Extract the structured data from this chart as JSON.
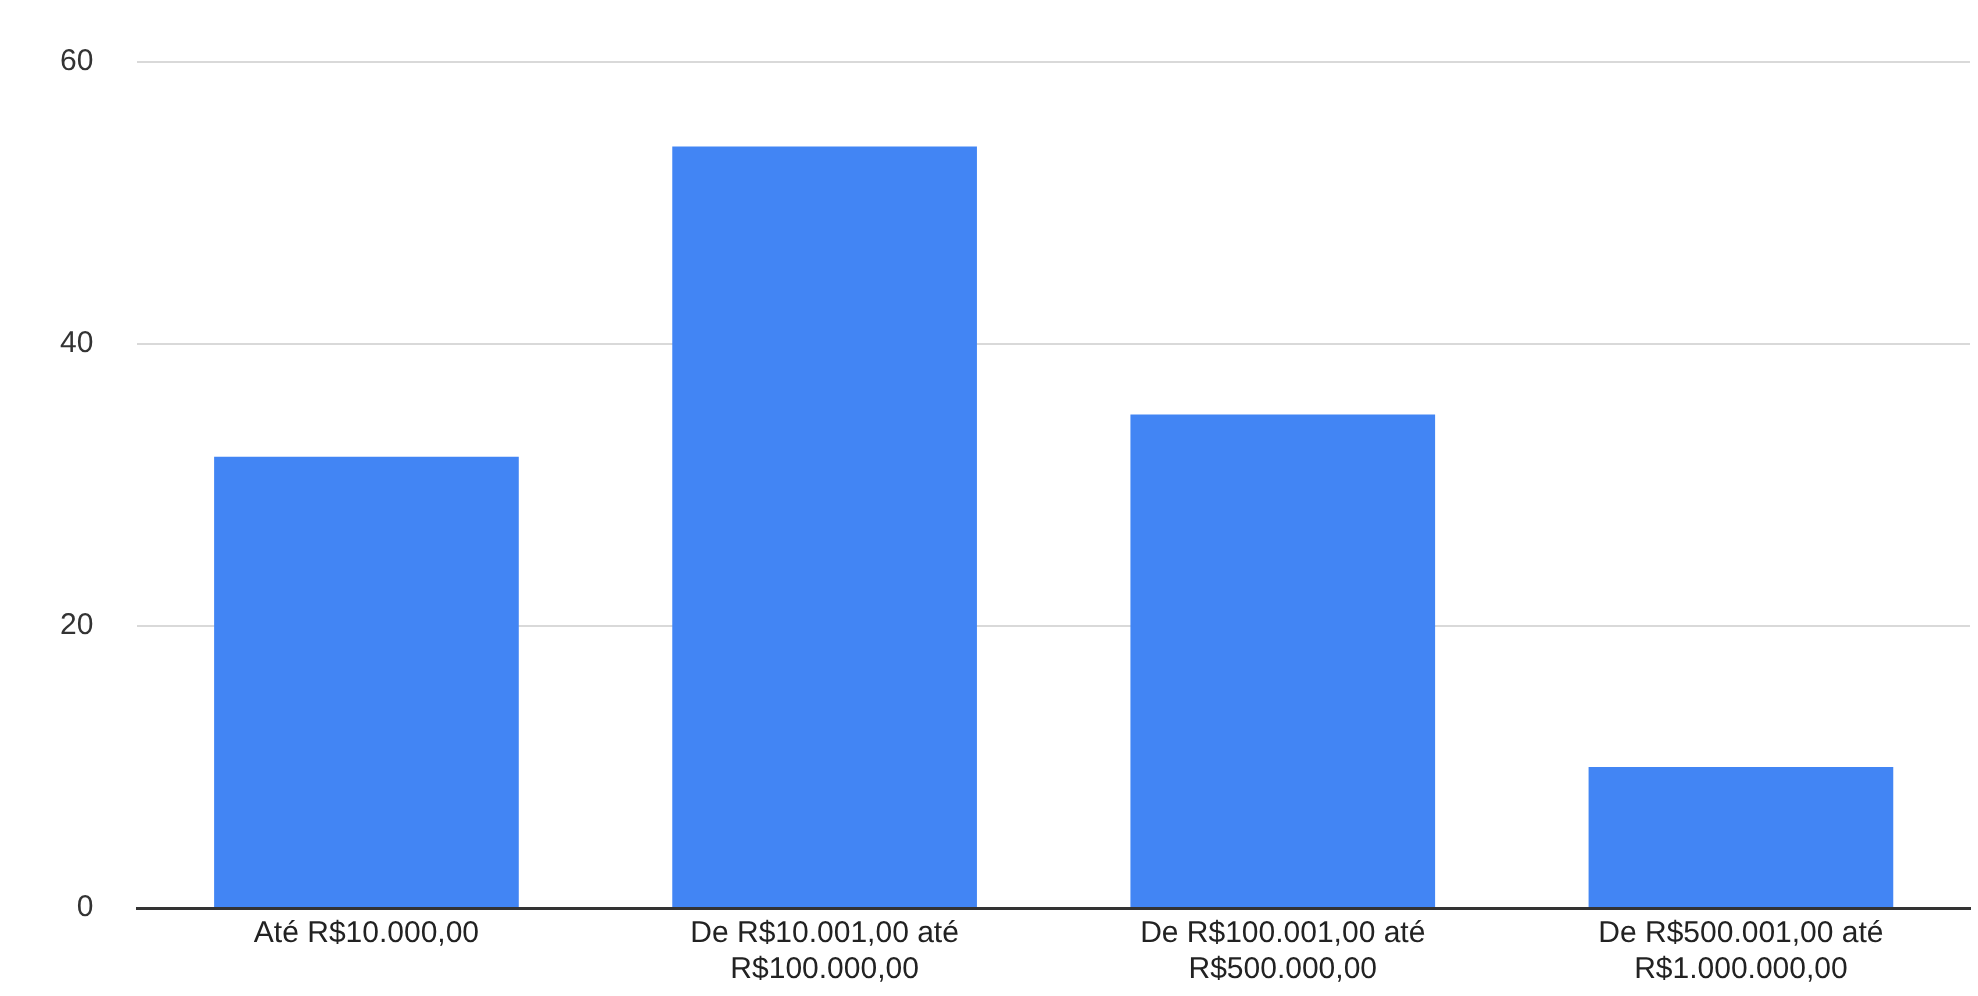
{
  "chart_data": {
    "type": "bar",
    "categories": [
      "Até R$10.000,00",
      "De R$10.001,00 até R$100.000,00",
      "De R$100.001,00 até R$500.000,00",
      "De R$500.001,00 até R$1.000.000,00"
    ],
    "values": [
      32,
      54,
      35,
      10
    ],
    "color": "#4285f4",
    "ylim": [
      0,
      60
    ],
    "yticks": [
      0,
      20,
      40,
      60
    ],
    "grid": "y"
  }
}
